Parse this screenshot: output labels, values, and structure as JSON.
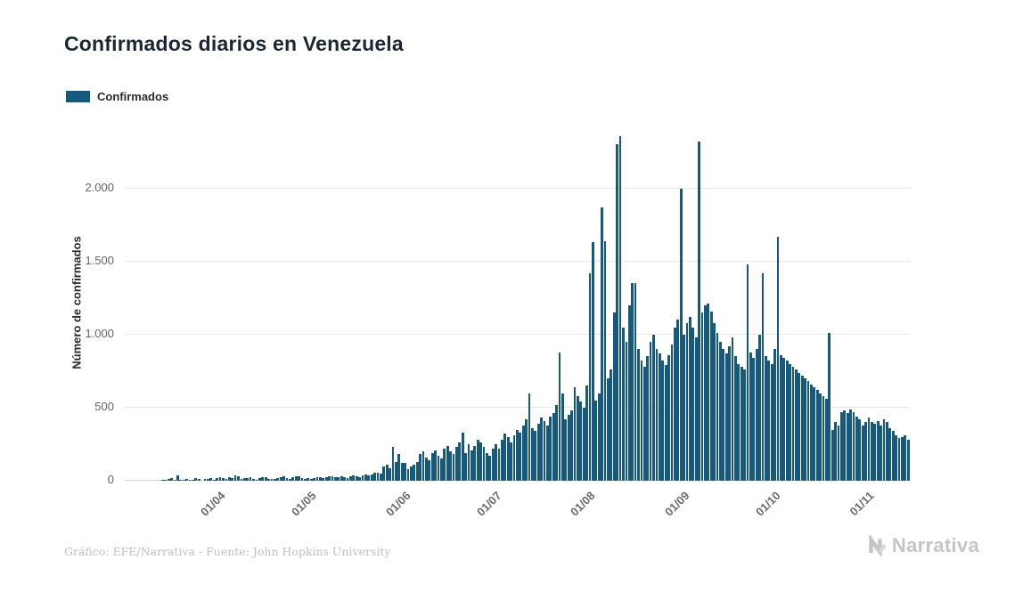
{
  "title": "Confirmados diarios en Venezuela",
  "legend": {
    "label": "Confirmados",
    "color": "#16597E"
  },
  "y_axis_label": "Número de confirmados",
  "footer": {
    "credit": "Gráfico: EFE/Narrativa - Fuente: John Hopkins University"
  },
  "brand": {
    "name": "Narrativa"
  },
  "chart_data": {
    "type": "bar",
    "title": "Confirmados diarios en Venezuela",
    "series_name": "Confirmados",
    "xlabel": "",
    "ylabel": "Número de confirmados",
    "start_date": "01/03/2020",
    "frequency": "daily",
    "grid": true,
    "legend_position": "top-left",
    "bar_color": "#16597E",
    "ylim": [
      0,
      2400
    ],
    "y_ticks": [
      {
        "label": "0",
        "value": 0
      },
      {
        "label": "500",
        "value": 500
      },
      {
        "label": "1.000",
        "value": 1000
      },
      {
        "label": "1.500",
        "value": 1500
      },
      {
        "label": "2.000",
        "value": 2000
      }
    ],
    "x_ticks": [
      {
        "label": "01/04",
        "index": 31
      },
      {
        "label": "01/05",
        "index": 61
      },
      {
        "label": "01/06",
        "index": 92
      },
      {
        "label": "01/07",
        "index": 122
      },
      {
        "label": "01/08",
        "index": 153
      },
      {
        "label": "01/09",
        "index": 184
      },
      {
        "label": "01/10",
        "index": 214
      },
      {
        "label": "01/11",
        "index": 245
      }
    ],
    "values": [
      0,
      0,
      0,
      0,
      0,
      0,
      0,
      0,
      0,
      0,
      0,
      0,
      2,
      7,
      10,
      16,
      7,
      36,
      6,
      7,
      10,
      7,
      9,
      21,
      12,
      0,
      12,
      11,
      16,
      8,
      20,
      27,
      16,
      10,
      22,
      21,
      35,
      28,
      12,
      19,
      20,
      23,
      14,
      9,
      17,
      26,
      22,
      10,
      12,
      14,
      20,
      25,
      30,
      18,
      12,
      22,
      31,
      28,
      20,
      15,
      18,
      15,
      18,
      22,
      26,
      20,
      24,
      30,
      28,
      22,
      26,
      32,
      25,
      20,
      30,
      36,
      28,
      26,
      34,
      40,
      38,
      45,
      52,
      56,
      48,
      96,
      110,
      88,
      230,
      130,
      180,
      120,
      120,
      80,
      95,
      110,
      130,
      180,
      200,
      160,
      140,
      190,
      210,
      170,
      150,
      220,
      240,
      200,
      180,
      230,
      260,
      330,
      190,
      250,
      210,
      240,
      280,
      260,
      230,
      190,
      170,
      220,
      250,
      220,
      280,
      320,
      300,
      260,
      310,
      350,
      330,
      380,
      420,
      600,
      360,
      340,
      390,
      430,
      410,
      380,
      440,
      460,
      520,
      880,
      600,
      420,
      450,
      480,
      640,
      580,
      540,
      500,
      650,
      1420,
      1630,
      550,
      600,
      1870,
      1640,
      700,
      760,
      1150,
      2300,
      2360,
      1050,
      950,
      1200,
      1350,
      1350,
      900,
      820,
      780,
      850,
      950,
      1000,
      900,
      870,
      820,
      790,
      860,
      930,
      1050,
      1100,
      2000,
      1000,
      1080,
      1120,
      1050,
      980,
      2320,
      1150,
      1200,
      1210,
      1160,
      1080,
      1010,
      950,
      900,
      870,
      920,
      980,
      850,
      800,
      780,
      760,
      1480,
      880,
      840,
      900,
      1000,
      1420,
      850,
      820,
      800,
      900,
      1670,
      860,
      840,
      820,
      800,
      780,
      760,
      740,
      720,
      700,
      680,
      660,
      640,
      620,
      600,
      580,
      560,
      1010,
      350,
      400,
      380,
      470,
      480,
      460,
      490,
      470,
      440,
      420,
      380,
      400,
      430,
      400,
      390,
      410,
      380,
      420,
      400,
      360,
      340,
      310,
      290,
      300,
      310,
      280
    ]
  }
}
